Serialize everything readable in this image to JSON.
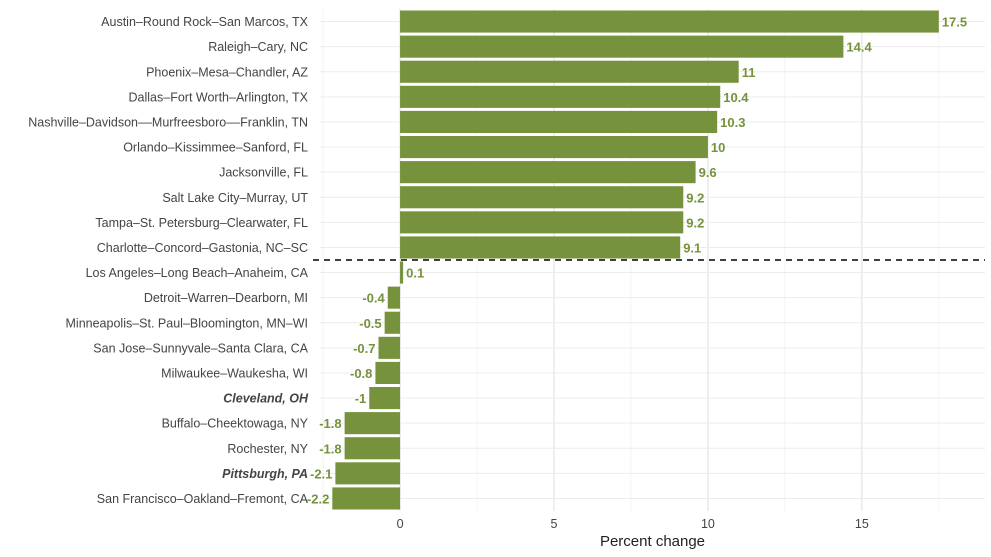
{
  "chart_data": {
    "type": "bar",
    "orientation": "horizontal",
    "categories": [
      "Austin–Round Rock–San Marcos, TX",
      "Raleigh–Cary, NC",
      "Phoenix–Mesa–Chandler, AZ",
      "Dallas–Fort Worth–Arlington, TX",
      "Nashville–Davidson––Murfreesboro––Franklin, TN",
      "Orlando–Kissimmee–Sanford, FL",
      "Jacksonville, FL",
      "Salt Lake City–Murray, UT",
      "Tampa–St. Petersburg–Clearwater, FL",
      "Charlotte–Concord–Gastonia, NC–SC",
      "Los Angeles–Long Beach–Anaheim, CA",
      "Detroit–Warren–Dearborn, MI",
      "Minneapolis–St. Paul–Bloomington, MN–WI",
      "San Jose–Sunnyvale–Santa Clara, CA",
      "Milwaukee–Waukesha, WI",
      "Cleveland, OH",
      "Buffalo–Cheektowaga, NY",
      "Rochester, NY",
      "Pittsburgh, PA",
      "San Francisco–Oakland–Fremont, CA"
    ],
    "values": [
      17.5,
      14.4,
      11,
      10.4,
      10.3,
      10,
      9.6,
      9.2,
      9.2,
      9.1,
      0.1,
      -0.4,
      -0.5,
      -0.7,
      -0.8,
      -1,
      -1.8,
      -1.8,
      -2.1,
      -2.2
    ],
    "value_labels": [
      "17.5",
      "14.4",
      "11",
      "10.4",
      "10.3",
      "10",
      "9.6",
      "9.2",
      "9.2",
      "9.1",
      "0.1",
      "-0.4",
      "-0.5",
      "-0.7",
      "-0.8",
      "-1",
      "-1.8",
      "-1.8",
      "-2.1",
      "-2.2"
    ],
    "emphasized": [
      "Cleveland, OH",
      "Pittsburgh, PA"
    ],
    "separator_after_index": 9,
    "xlabel": "Percent change",
    "ylabel": "",
    "xlim": [
      -2.6,
      19.0
    ],
    "xticks": [
      0,
      5,
      10,
      15
    ],
    "xtick_labels": [
      "0",
      "5",
      "10",
      "15"
    ],
    "grid": true,
    "colors": {
      "bar": "#76923c",
      "value_label": "#76923c",
      "grid": "#ececec",
      "separator": "#000000"
    }
  }
}
